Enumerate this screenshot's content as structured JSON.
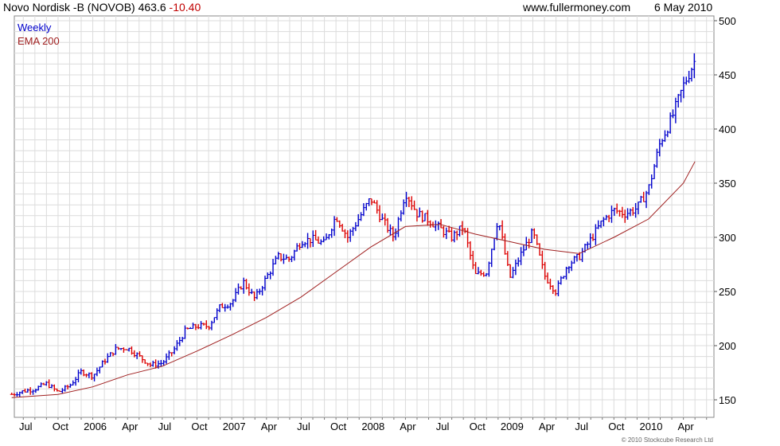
{
  "header": {
    "name": "Novo Nordisk -B (NOVOB)",
    "price": "463.6",
    "change": "-10.40",
    "site": "www.fullermoney.com",
    "date": "6 May 2010"
  },
  "legend": {
    "period": "Weekly",
    "ema": "EMA 200"
  },
  "copyright": "© 2010 Stockcube Research Ltd",
  "colors": {
    "up": "#0000cc",
    "down": "#dd0000",
    "ema": "#a02020",
    "grid": "#dcdcdc"
  },
  "chart_data": {
    "type": "line",
    "title": "Novo Nordisk -B (NOVOB)",
    "ylim": [
      140,
      500
    ],
    "yticks": [
      150,
      200,
      250,
      300,
      350,
      400,
      450,
      500
    ],
    "x_tick_labels": [
      "Jul",
      "Oct",
      "2006",
      "Apr",
      "Jul",
      "Oct",
      "2007",
      "Apr",
      "Jul",
      "Oct",
      "2008",
      "Apr",
      "Jul",
      "Oct",
      "2009",
      "Apr",
      "Jul",
      "Oct",
      "2010",
      "Apr"
    ],
    "grid": true,
    "y_axis_side": "right",
    "series": [
      {
        "name": "Weekly",
        "approximate_weekly_close": [
          {
            "x": "2005-06",
            "y": 155
          },
          {
            "x": "2005-07",
            "y": 158
          },
          {
            "x": "2005-08",
            "y": 160
          },
          {
            "x": "2005-09",
            "y": 165
          },
          {
            "x": "2005-10",
            "y": 157
          },
          {
            "x": "2005-11",
            "y": 163
          },
          {
            "x": "2005-12",
            "y": 176
          },
          {
            "x": "2006-01",
            "y": 172
          },
          {
            "x": "2006-02",
            "y": 186
          },
          {
            "x": "2006-03",
            "y": 197
          },
          {
            "x": "2006-04",
            "y": 198
          },
          {
            "x": "2006-05",
            "y": 190
          },
          {
            "x": "2006-06",
            "y": 182
          },
          {
            "x": "2006-07",
            "y": 184
          },
          {
            "x": "2006-08",
            "y": 196
          },
          {
            "x": "2006-09",
            "y": 214
          },
          {
            "x": "2006-10",
            "y": 218
          },
          {
            "x": "2006-11",
            "y": 218
          },
          {
            "x": "2006-12",
            "y": 236
          },
          {
            "x": "2007-01",
            "y": 240
          },
          {
            "x": "2007-02",
            "y": 259
          },
          {
            "x": "2007-03",
            "y": 243
          },
          {
            "x": "2007-04",
            "y": 263
          },
          {
            "x": "2007-05",
            "y": 282
          },
          {
            "x": "2007-06",
            "y": 280
          },
          {
            "x": "2007-07",
            "y": 297
          },
          {
            "x": "2007-08",
            "y": 298
          },
          {
            "x": "2007-09",
            "y": 294
          },
          {
            "x": "2007-10",
            "y": 320
          },
          {
            "x": "2007-11",
            "y": 300
          },
          {
            "x": "2007-12",
            "y": 318
          },
          {
            "x": "2008-01",
            "y": 336
          },
          {
            "x": "2008-02",
            "y": 316
          },
          {
            "x": "2008-03",
            "y": 300
          },
          {
            "x": "2008-04",
            "y": 342
          },
          {
            "x": "2008-05",
            "y": 322
          },
          {
            "x": "2008-06",
            "y": 316
          },
          {
            "x": "2008-07",
            "y": 308
          },
          {
            "x": "2008-08",
            "y": 300
          },
          {
            "x": "2008-09",
            "y": 310
          },
          {
            "x": "2008-10",
            "y": 265
          },
          {
            "x": "2008-11",
            "y": 268
          },
          {
            "x": "2008-12",
            "y": 318
          },
          {
            "x": "2009-01",
            "y": 262
          },
          {
            "x": "2009-02",
            "y": 285
          },
          {
            "x": "2009-03",
            "y": 305
          },
          {
            "x": "2009-04",
            "y": 265
          },
          {
            "x": "2009-05",
            "y": 250
          },
          {
            "x": "2009-06",
            "y": 275
          },
          {
            "x": "2009-07",
            "y": 282
          },
          {
            "x": "2009-08",
            "y": 298
          },
          {
            "x": "2009-09",
            "y": 315
          },
          {
            "x": "2009-10",
            "y": 325
          },
          {
            "x": "2009-11",
            "y": 322
          },
          {
            "x": "2009-12",
            "y": 327
          },
          {
            "x": "2010-01",
            "y": 345
          },
          {
            "x": "2010-02",
            "y": 388
          },
          {
            "x": "2010-03",
            "y": 410
          },
          {
            "x": "2010-04",
            "y": 440
          },
          {
            "x": "2010-05",
            "y": 463.6
          }
        ]
      },
      {
        "name": "EMA 200",
        "values": [
          {
            "x": "2005-06",
            "y": 152
          },
          {
            "x": "2005-10",
            "y": 155
          },
          {
            "x": "2006-01",
            "y": 162
          },
          {
            "x": "2006-04",
            "y": 173
          },
          {
            "x": "2006-07",
            "y": 181
          },
          {
            "x": "2006-10",
            "y": 195
          },
          {
            "x": "2007-01",
            "y": 210
          },
          {
            "x": "2007-04",
            "y": 226
          },
          {
            "x": "2007-07",
            "y": 245
          },
          {
            "x": "2007-10",
            "y": 268
          },
          {
            "x": "2008-01",
            "y": 291
          },
          {
            "x": "2008-04",
            "y": 310
          },
          {
            "x": "2008-07",
            "y": 312
          },
          {
            "x": "2008-10",
            "y": 303
          },
          {
            "x": "2009-01",
            "y": 296
          },
          {
            "x": "2009-04",
            "y": 289
          },
          {
            "x": "2009-07",
            "y": 285
          },
          {
            "x": "2009-10",
            "y": 300
          },
          {
            "x": "2010-01",
            "y": 317
          },
          {
            "x": "2010-04",
            "y": 350
          },
          {
            "x": "2010-05",
            "y": 370
          }
        ]
      }
    ]
  }
}
